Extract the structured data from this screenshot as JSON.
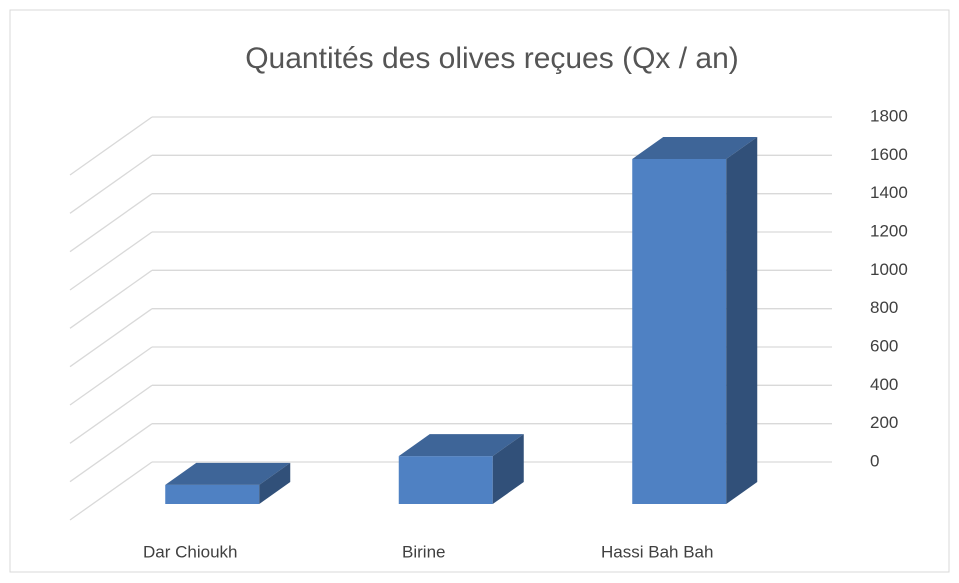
{
  "chart_data": {
    "type": "bar3d",
    "title": "Quantités des olives reçues (Qx / an)",
    "categories": [
      "Dar Chioukh",
      "Birine",
      "Hassi Bah Bah"
    ],
    "values": [
      100,
      250,
      1800
    ],
    "color": "#4f81c3",
    "ylim": [
      0,
      1800
    ],
    "yticks": [
      0,
      200,
      400,
      600,
      800,
      1000,
      1200,
      1400,
      1600,
      1800
    ],
    "grid": true
  }
}
